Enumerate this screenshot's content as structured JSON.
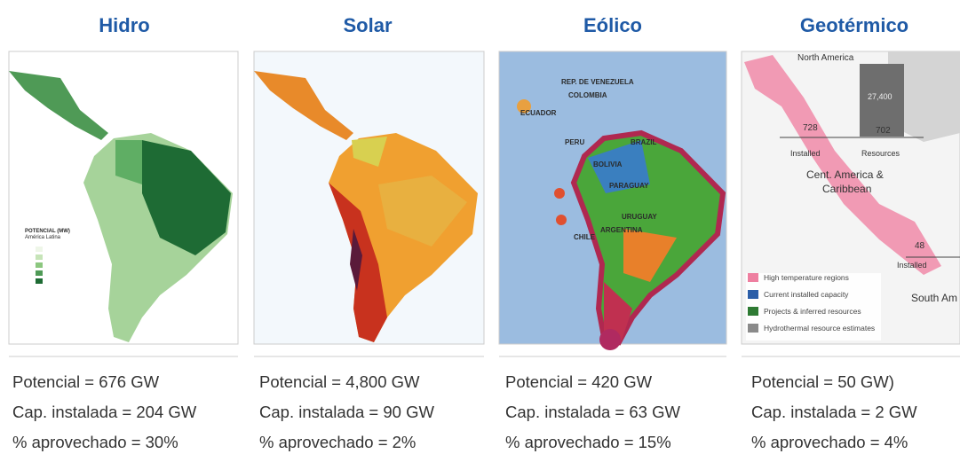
{
  "panels": [
    {
      "title": "Hidro",
      "map_labels": [
        "POTENCIAL (MW)",
        "América Latina"
      ],
      "lines": [
        "Potencial = 676 GW",
        "Cap. instalada = 204 GW",
        "% aprovechado = 30%"
      ]
    },
    {
      "title": "Solar",
      "lines": [
        "Potencial = 4,800 GW",
        "Cap. instalada = 90 GW",
        "% aprovechado = 2%"
      ]
    },
    {
      "title": "Eólico",
      "map_labels": [
        "REP. DE VENEZUELA",
        "COLOMBIA",
        "ECUADOR",
        "PERU",
        "BRAZIL",
        "BOLIVIA",
        "PARAGUAY",
        "URUGUAY",
        "CHILE",
        "ARGENTINA"
      ],
      "lines": [
        "Potencial = 420 GW",
        "Cap. instalada = 63 GW",
        "% aprovechado = 15%"
      ]
    },
    {
      "title": "Geotérmico",
      "map_labels": [
        "North America",
        "27,400",
        "728",
        "702",
        "Installed",
        "Resources",
        "Cent. America &",
        "Caribbean",
        "48",
        "Installed",
        "South Am"
      ],
      "legend": [
        "High temperature regions",
        "Current installed capacity",
        "Projects & inferred resources",
        "Hydrothermal resource estimates"
      ],
      "lines": [
        "Potencial = 50 GW)",
        "Cap. instalada = 2 GW",
        "% aprovechado = 4%"
      ]
    }
  ]
}
